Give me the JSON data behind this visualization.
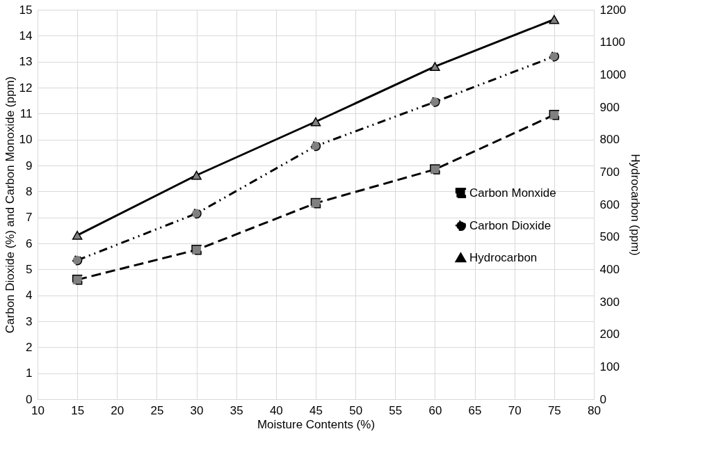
{
  "chart_data": {
    "type": "line",
    "xlabel": "Moisture Contents (%)",
    "ylabel": "Carbon Dioxide (%) and Carbon Monoxide (ppm)",
    "y2label": "Hydrocarbon (ppm)",
    "x": [
      15,
      30,
      45,
      60,
      75
    ],
    "xlim": [
      10,
      80
    ],
    "xticks": [
      10,
      15,
      20,
      25,
      30,
      35,
      40,
      45,
      50,
      55,
      60,
      65,
      70,
      75,
      80
    ],
    "ylim": [
      0,
      15
    ],
    "yticks": [
      0,
      1,
      2,
      3,
      4,
      5,
      6,
      7,
      8,
      9,
      10,
      11,
      12,
      13,
      14,
      15
    ],
    "y2lim": [
      0,
      1200
    ],
    "y2ticks": [
      0,
      100,
      200,
      300,
      400,
      500,
      600,
      700,
      800,
      900,
      1000,
      1100,
      1200
    ],
    "grid": true,
    "legend": "right",
    "series": [
      {
        "name": "Carbon Monxide",
        "color": "#000000",
        "values": [
          4.6,
          5.75,
          7.55,
          8.85,
          10.95
        ],
        "marker": "square",
        "line_style": "dashed"
      },
      {
        "name": "Carbon Dioxide",
        "color": "#000000",
        "values": [
          5.35,
          7.15,
          9.75,
          11.45,
          13.2
        ],
        "marker": "circle",
        "line_style": "dotted"
      },
      {
        "name": "Hydrocarbon",
        "color": "#000000",
        "values": [
          505,
          690,
          855,
          1025,
          1170
        ],
        "marker": "triangle",
        "line_style": "solid",
        "axis": "y2"
      }
    ]
  }
}
